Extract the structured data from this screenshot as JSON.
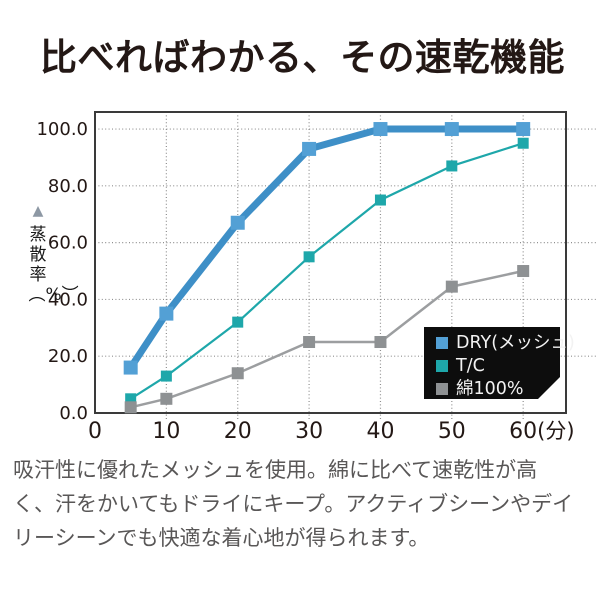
{
  "title": "比べればわかる、その速乾機能",
  "y_axis": {
    "marker": "▲",
    "label": "蒸散率︵%︶"
  },
  "x_axis": {
    "unit": "(分)"
  },
  "colors": {
    "grid": "#8f8f8f",
    "border": "#3a3a3a",
    "legend_bg": "#0d0d0d",
    "legend_text": "#f2f2f2",
    "tick_text": "#231815",
    "title_text": "#231815",
    "body_text": "#595757",
    "triangle": "#8d98a4"
  },
  "chart_data": {
    "type": "line",
    "title": "",
    "xlabel": "(分)",
    "ylabel": "蒸散率(%)",
    "x": [
      5,
      10,
      20,
      30,
      40,
      50,
      60
    ],
    "series": [
      {
        "name": "DRY(メッシュ)",
        "color": "#3e8fc7",
        "marker_color": "#53a0d5",
        "line_width": 7,
        "marker_size": 14,
        "values": [
          16,
          35,
          67,
          93,
          100,
          100,
          100
        ]
      },
      {
        "name": "T/C",
        "color": "#1ea7aa",
        "marker_color": "#1ea7aa",
        "line_width": 2.2,
        "marker_size": 11,
        "values": [
          5,
          13,
          32,
          55,
          75,
          87,
          95
        ]
      },
      {
        "name": "綿100%",
        "color": "#9c9ea0",
        "marker_color": "#8e9193",
        "line_width": 2.5,
        "marker_size": 12,
        "values": [
          2,
          5,
          14,
          25,
          25,
          44.5,
          50
        ]
      }
    ],
    "xticks": [
      0,
      10,
      20,
      30,
      40,
      50,
      60
    ],
    "xtick_labels": [
      "0",
      "10",
      "20",
      "30",
      "40",
      "50",
      "60"
    ],
    "yticks": [
      0,
      20,
      40,
      60,
      80,
      100
    ],
    "ytick_labels": [
      "0.0",
      "20.0",
      "40.0",
      "60.0",
      "80.0",
      "100.0"
    ],
    "xlim": [
      0,
      66
    ],
    "ylim": [
      0,
      106
    ],
    "grid": true,
    "legend_position": "bottom-right"
  },
  "description": {
    "lines": [
      "吸汗性に優れたメッシュを使用。綿に比べて速乾性が高",
      "く、汗をかいてもドライにキープ。アクティブシーンやデイ",
      "リーシーンでも快適な着心地が得られます。"
    ]
  }
}
